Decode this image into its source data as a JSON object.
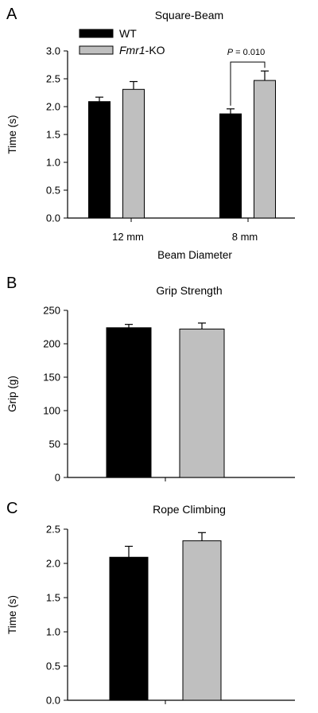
{
  "chart_data": [
    {
      "type": "bar",
      "panel": "A",
      "title": "Square-Beam",
      "xlabel": "Beam Diameter",
      "ylabel": "Time (s)",
      "ylim": [
        0,
        3.0
      ],
      "yticks": [
        "0.0",
        "0.5",
        "1.0",
        "1.5",
        "2.0",
        "2.5",
        "3.0"
      ],
      "categories": [
        "12 mm",
        "8 mm"
      ],
      "series": [
        {
          "name": "WT",
          "color": "#000000",
          "values": [
            2.09,
            1.87
          ],
          "errors": [
            0.08,
            0.09
          ]
        },
        {
          "name": "Fmr1-KO",
          "name_italic": "Fmr1",
          "name_suffix": "-KO",
          "color": "#bfbfbf",
          "values": [
            2.31,
            2.47
          ],
          "errors": [
            0.14,
            0.17
          ]
        }
      ],
      "legend": "top-left",
      "annotations": [
        {
          "text": "P = 0.010",
          "text_italic": "P",
          "text_rest": " = 0.010",
          "category": "8 mm"
        }
      ]
    },
    {
      "type": "bar",
      "panel": "B",
      "title": "Grip Strength",
      "xlabel": "",
      "ylabel": "Grip (g)",
      "ylim": [
        0,
        250
      ],
      "yticks": [
        "0",
        "50",
        "100",
        "150",
        "200",
        "250"
      ],
      "series": [
        {
          "name": "WT",
          "color": "#000000",
          "values": [
            224
          ],
          "errors": [
            5
          ]
        },
        {
          "name": "Fmr1-KO",
          "color": "#bfbfbf",
          "values": [
            222
          ],
          "errors": [
            9
          ]
        }
      ]
    },
    {
      "type": "bar",
      "panel": "C",
      "title": "Rope Climbing",
      "xlabel": "",
      "ylabel": "Time (s)",
      "ylim": [
        0,
        2.5
      ],
      "yticks": [
        "0.0",
        "0.5",
        "1.0",
        "1.5",
        "2.0",
        "2.5"
      ],
      "series": [
        {
          "name": "WT",
          "color": "#000000",
          "values": [
            2.09
          ],
          "errors": [
            0.16
          ]
        },
        {
          "name": "Fmr1-KO",
          "color": "#bfbfbf",
          "values": [
            2.33
          ],
          "errors": [
            0.12
          ]
        }
      ]
    }
  ]
}
